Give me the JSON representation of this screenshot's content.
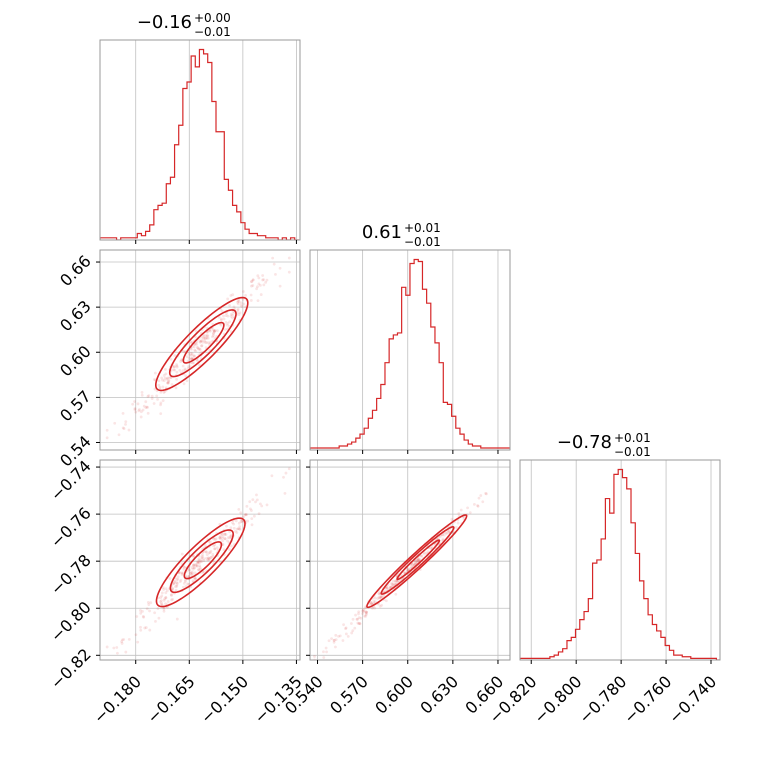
{
  "colors": {
    "series": "#d62728",
    "grid": "#c0c0c0",
    "frame": "#9a9a9a"
  },
  "chart_data": [
    {
      "type": "histogram",
      "panel": "p0_0",
      "parameter_index": 0,
      "title": {
        "main": "−0.16",
        "sup": "+0.00",
        "sub": "−0.01"
      },
      "xlim": [
        -0.19,
        -0.134
      ],
      "x_ticks": [
        -0.18,
        -0.165,
        -0.15,
        -0.135
      ],
      "bins": [
        -0.19,
        -0.18884,
        -0.18768,
        -0.18652,
        -0.18536,
        -0.1842,
        -0.18304,
        -0.18188,
        -0.18072,
        -0.17956,
        -0.1784,
        -0.17724,
        -0.17608,
        -0.17492,
        -0.17376,
        -0.1726,
        -0.17144,
        -0.17028,
        -0.16912,
        -0.16796,
        -0.1668,
        -0.16564,
        -0.16448,
        -0.16332,
        -0.16216,
        -0.161,
        -0.15984,
        -0.15868,
        -0.15752,
        -0.15636,
        -0.1552,
        -0.15404,
        -0.15288,
        -0.15172,
        -0.15056,
        -0.1494,
        -0.14824,
        -0.14708,
        -0.14592,
        -0.14476,
        -0.1436,
        -0.14244,
        -0.14128,
        -0.14012,
        -0.13896,
        -0.1378,
        -0.13664,
        -0.13548,
        -0.13432
      ],
      "counts": [
        1,
        1,
        1,
        1,
        0,
        1,
        1,
        1,
        1,
        3,
        2,
        4,
        7,
        14,
        16,
        17,
        26,
        29,
        44,
        53,
        70,
        73,
        85,
        80,
        88,
        86,
        82,
        64,
        50,
        50,
        28,
        23,
        16,
        13,
        8,
        5,
        3,
        3,
        2,
        2,
        1,
        1,
        1,
        0,
        1,
        0,
        1,
        0
      ]
    },
    {
      "type": "histogram",
      "panel": "p1_1",
      "parameter_index": 1,
      "title": {
        "main": "0.61",
        "sup": "+0.01",
        "sub": "−0.01"
      },
      "xlim": [
        0.535,
        0.668
      ],
      "x_ticks": [
        0.54,
        0.57,
        0.6,
        0.63,
        0.66
      ],
      "x_tick_labels": [
        "0.54",
        "0.57",
        "0.60",
        "0.63",
        "0.66"
      ],
      "bins": [
        0.535,
        0.53777,
        0.54054,
        0.54331,
        0.54608,
        0.54885,
        0.55162,
        0.55439,
        0.55716,
        0.55993,
        0.5627,
        0.56547,
        0.56824,
        0.57101,
        0.57378,
        0.57655,
        0.57932,
        0.58209,
        0.58486,
        0.58763,
        0.5904,
        0.59317,
        0.59594,
        0.59871,
        0.60148,
        0.60425,
        0.60702,
        0.60979,
        0.61256,
        0.61533,
        0.6181,
        0.62087,
        0.62364,
        0.62641,
        0.62918,
        0.63195,
        0.63472,
        0.63749,
        0.64026,
        0.64303,
        0.6458,
        0.64857,
        0.65134,
        0.65411,
        0.65688,
        0.65965,
        0.66242,
        0.66519,
        0.66796
      ],
      "counts": [
        1,
        1,
        1,
        1,
        1,
        1,
        1,
        2,
        2,
        3,
        4,
        6,
        8,
        11,
        16,
        20,
        26,
        33,
        44,
        56,
        58,
        59,
        82,
        78,
        94,
        96,
        95,
        81,
        74,
        62,
        54,
        44,
        24,
        23,
        17,
        11,
        8,
        5,
        3,
        2,
        2,
        1,
        1,
        1,
        1,
        1,
        1,
        1
      ]
    },
    {
      "type": "histogram",
      "panel": "p2_2",
      "parameter_index": 2,
      "title": {
        "main": "−0.78",
        "sup": "+0.01",
        "sub": "−0.01"
      },
      "xlim": [
        -0.825,
        -0.736
      ],
      "x_ticks": [
        -0.82,
        -0.8,
        -0.78,
        -0.76,
        -0.74
      ],
      "bins": [
        -0.825,
        -0.8231,
        -0.8212,
        -0.8193,
        -0.8174,
        -0.8155,
        -0.8136,
        -0.8117,
        -0.8098,
        -0.8079,
        -0.806,
        -0.8041,
        -0.8022,
        -0.8003,
        -0.7984,
        -0.7965,
        -0.7946,
        -0.7927,
        -0.7908,
        -0.7889,
        -0.787,
        -0.7851,
        -0.7832,
        -0.7813,
        -0.7794,
        -0.7775,
        -0.7756,
        -0.7737,
        -0.7718,
        -0.7699,
        -0.768,
        -0.7661,
        -0.7642,
        -0.7623,
        -0.7604,
        -0.7585,
        -0.7566,
        -0.7547,
        -0.7528,
        -0.7509,
        -0.749,
        -0.7471,
        -0.7452,
        -0.7433,
        -0.7414,
        -0.7395,
        -0.7376,
        -0.7357
      ],
      "counts": [
        1,
        1,
        1,
        1,
        1,
        1,
        1,
        2,
        3,
        5,
        7,
        12,
        14,
        19,
        25,
        30,
        38,
        60,
        62,
        75,
        100,
        91,
        115,
        118,
        113,
        106,
        85,
        66,
        49,
        38,
        28,
        22,
        18,
        14,
        9,
        6,
        3,
        3,
        2,
        2,
        1,
        1,
        1,
        1,
        1,
        1,
        0
      ]
    },
    {
      "type": "scatter",
      "panel": "p1_0",
      "x_param": 0,
      "y_param": 1,
      "xlim": [
        -0.19,
        -0.134
      ],
      "ylim": [
        0.535,
        0.668
      ],
      "x_ticks": [
        -0.18,
        -0.165,
        -0.15,
        -0.135
      ],
      "y_ticks": [
        0.54,
        0.57,
        0.6,
        0.63,
        0.66
      ],
      "y_tick_labels": [
        "0.54",
        "0.57",
        "0.60",
        "0.63",
        "0.66"
      ],
      "contours": [
        {
          "cx": -0.1615,
          "cy": 0.6055,
          "ax": 0.0125,
          "ay": 0.03,
          "w": 0.0011
        },
        {
          "cx": -0.1612,
          "cy": 0.606,
          "ax": 0.009,
          "ay": 0.0215,
          "w": 0.0008
        },
        {
          "cx": -0.161,
          "cy": 0.6063,
          "ax": 0.0055,
          "ay": 0.013,
          "w": 0.0005
        }
      ],
      "scatter": {
        "slope": 2.4,
        "intercept": 0.993,
        "spread": 0.0055,
        "x_range": [
          -0.188,
          -0.137
        ],
        "count": 320
      }
    },
    {
      "type": "scatter",
      "panel": "p2_0",
      "x_param": 0,
      "y_param": 2,
      "xlim": [
        -0.19,
        -0.134
      ],
      "ylim": [
        -0.822,
        -0.737
      ],
      "x_ticks": [
        -0.18,
        -0.165,
        -0.15,
        -0.135
      ],
      "y_ticks": [
        -0.82,
        -0.8,
        -0.78,
        -0.76,
        -0.74
      ],
      "contours": [
        {
          "cx": -0.1618,
          "cy": -0.7805,
          "ax": 0.012,
          "ay": 0.0182,
          "w": 0.0011
        },
        {
          "cx": -0.1615,
          "cy": -0.78,
          "ax": 0.0085,
          "ay": 0.0128,
          "w": 0.0008
        },
        {
          "cx": -0.1612,
          "cy": -0.7796,
          "ax": 0.005,
          "ay": 0.0075,
          "w": 0.0005
        }
      ],
      "scatter": {
        "slope": 1.5,
        "intercept": -0.538,
        "spread": 0.0035,
        "x_range": [
          -0.188,
          -0.137
        ],
        "count": 320
      }
    },
    {
      "type": "scatter",
      "panel": "p2_1",
      "x_param": 1,
      "y_param": 2,
      "xlim": [
        0.535,
        0.668
      ],
      "ylim": [
        -0.822,
        -0.737
      ],
      "x_ticks": [
        0.54,
        0.57,
        0.6,
        0.63,
        0.66
      ],
      "y_ticks": [
        -0.82,
        -0.8,
        -0.78,
        -0.76,
        -0.74
      ],
      "contours": [
        {
          "cx": 0.606,
          "cy": -0.78,
          "ax": 0.033,
          "ay": 0.0195,
          "w": 0.0012
        },
        {
          "cx": 0.6065,
          "cy": -0.7797,
          "ax": 0.024,
          "ay": 0.0142,
          "w": 0.0009
        },
        {
          "cx": 0.607,
          "cy": -0.7794,
          "ax": 0.014,
          "ay": 0.0083,
          "w": 0.0005
        }
      ],
      "scatter": {
        "slope": 0.62,
        "intercept": -1.156,
        "spread": 0.0018,
        "x_range": [
          0.538,
          0.655
        ],
        "count": 320
      }
    }
  ]
}
